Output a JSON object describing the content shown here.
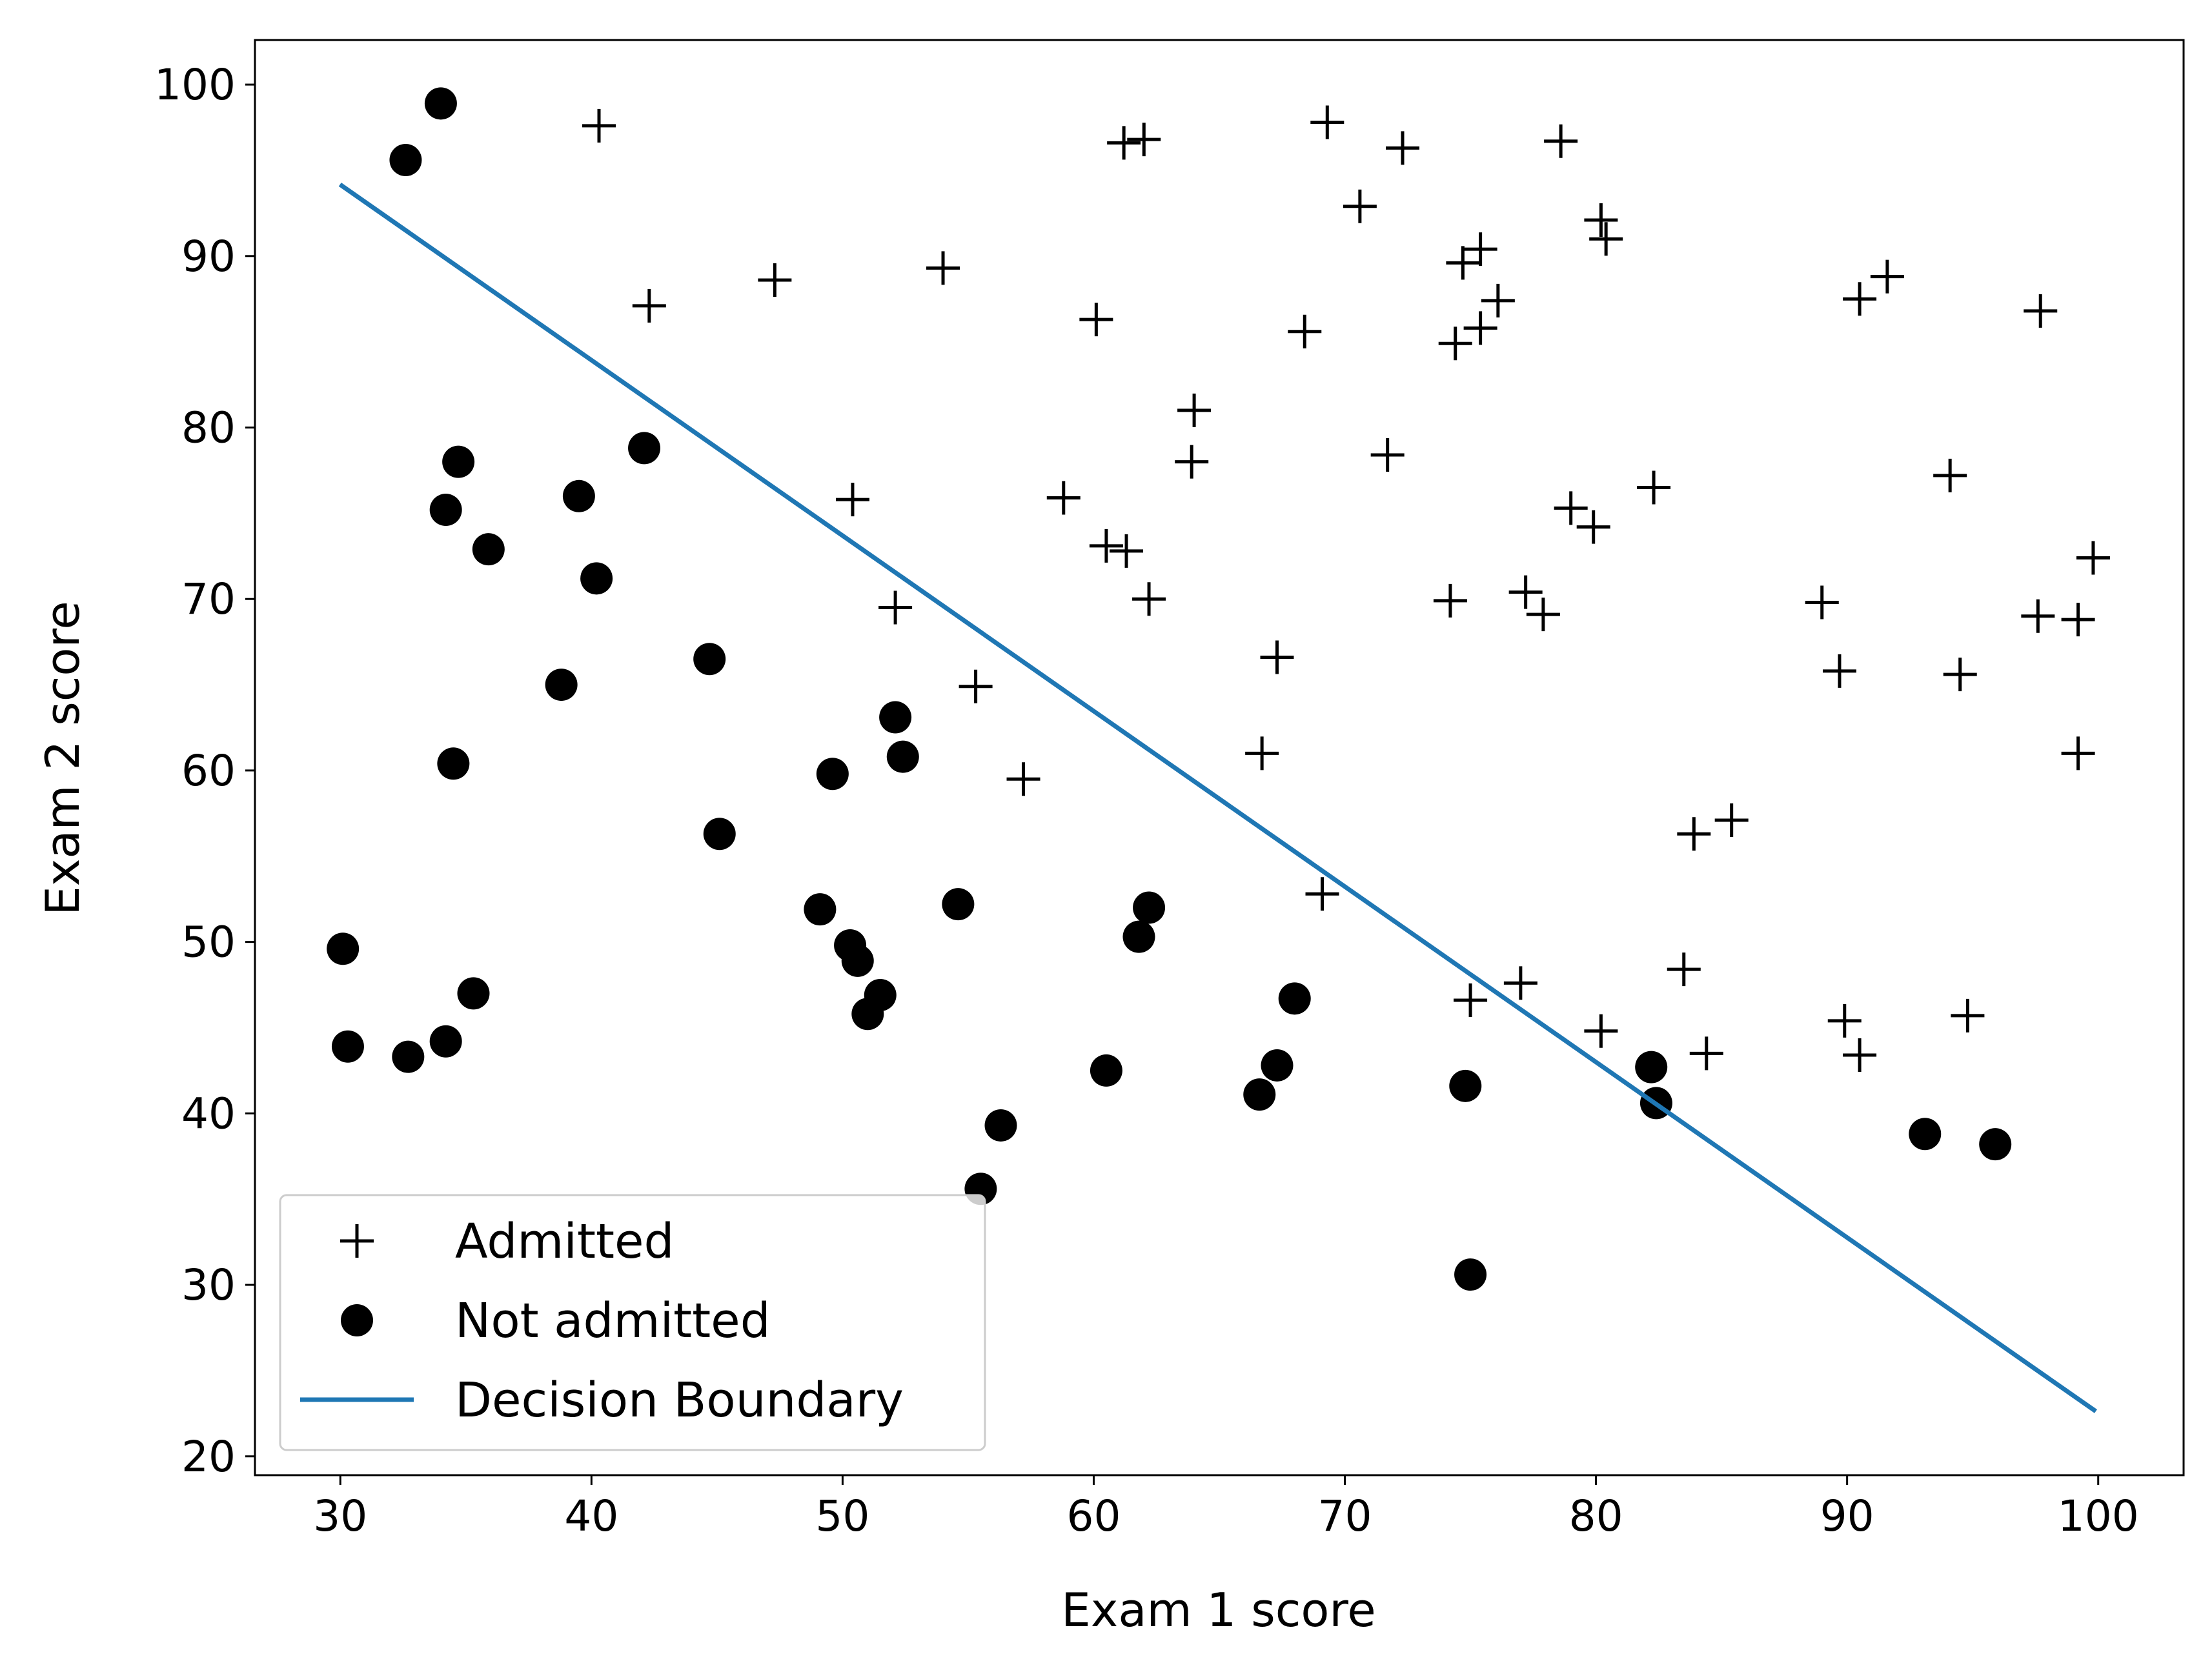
{
  "chart_data": {
    "type": "scatter",
    "xlabel": "Exam 1 score",
    "ylabel": "Exam 2 score",
    "xlim": [
      26.6,
      103.4
    ],
    "ylim": [
      18.9,
      102.6
    ],
    "xticks": [
      30,
      40,
      50,
      60,
      70,
      80,
      90,
      100
    ],
    "yticks": [
      20,
      30,
      40,
      50,
      60,
      70,
      80,
      90,
      100
    ],
    "grid": false,
    "legend_position": "lower-left",
    "series": [
      {
        "name": "Admitted",
        "marker": "plus",
        "color": "#000000",
        "points": [
          [
            40.3,
            97.6
          ],
          [
            61.2,
            96.6
          ],
          [
            62.0,
            96.8
          ],
          [
            69.3,
            97.8
          ],
          [
            72.3,
            96.3
          ],
          [
            78.6,
            96.7
          ],
          [
            70.6,
            92.9
          ],
          [
            80.2,
            92.1
          ],
          [
            80.4,
            91.0
          ],
          [
            54.0,
            89.3
          ],
          [
            47.3,
            88.6
          ],
          [
            42.3,
            87.1
          ],
          [
            74.7,
            89.6
          ],
          [
            75.4,
            90.4
          ],
          [
            75.4,
            85.8
          ],
          [
            76.1,
            87.4
          ],
          [
            74.4,
            84.9
          ],
          [
            68.4,
            85.6
          ],
          [
            60.1,
            86.3
          ],
          [
            90.5,
            87.5
          ],
          [
            91.6,
            88.8
          ],
          [
            97.7,
            86.8
          ],
          [
            64.0,
            81.0
          ],
          [
            63.9,
            78.0
          ],
          [
            71.7,
            78.4
          ],
          [
            94.1,
            77.2
          ],
          [
            82.3,
            76.5
          ],
          [
            50.4,
            75.8
          ],
          [
            58.8,
            75.9
          ],
          [
            60.5,
            73.1
          ],
          [
            61.3,
            72.8
          ],
          [
            79.0,
            75.3
          ],
          [
            79.9,
            74.2
          ],
          [
            99.8,
            72.4
          ],
          [
            52.1,
            69.5
          ],
          [
            62.2,
            70.0
          ],
          [
            74.2,
            69.9
          ],
          [
            77.2,
            70.4
          ],
          [
            77.9,
            69.1
          ],
          [
            89.0,
            69.8
          ],
          [
            97.6,
            69.0
          ],
          [
            99.2,
            68.8
          ],
          [
            67.3,
            66.6
          ],
          [
            89.7,
            65.8
          ],
          [
            94.5,
            65.6
          ],
          [
            55.3,
            64.9
          ],
          [
            66.7,
            61.0
          ],
          [
            99.2,
            61.0
          ],
          [
            57.2,
            59.5
          ],
          [
            83.9,
            56.3
          ],
          [
            85.4,
            57.1
          ],
          [
            69.1,
            52.8
          ],
          [
            83.5,
            48.4
          ],
          [
            75.0,
            46.6
          ],
          [
            77.0,
            47.6
          ],
          [
            80.2,
            44.8
          ],
          [
            89.9,
            45.4
          ],
          [
            94.8,
            45.7
          ],
          [
            84.4,
            43.5
          ],
          [
            90.5,
            43.4
          ]
        ]
      },
      {
        "name": "Not admitted",
        "marker": "circle",
        "color": "#000000",
        "points": [
          [
            34.0,
            98.9
          ],
          [
            32.6,
            95.6
          ],
          [
            42.1,
            78.8
          ],
          [
            34.7,
            78.0
          ],
          [
            34.2,
            75.2
          ],
          [
            39.5,
            76.0
          ],
          [
            35.9,
            72.9
          ],
          [
            40.2,
            71.2
          ],
          [
            44.7,
            66.5
          ],
          [
            38.8,
            65.0
          ],
          [
            52.1,
            63.1
          ],
          [
            52.4,
            60.8
          ],
          [
            49.6,
            59.8
          ],
          [
            34.5,
            60.4
          ],
          [
            45.1,
            56.3
          ],
          [
            54.6,
            52.2
          ],
          [
            62.2,
            52.0
          ],
          [
            49.1,
            51.9
          ],
          [
            61.8,
            50.3
          ],
          [
            50.3,
            49.8
          ],
          [
            30.1,
            49.6
          ],
          [
            50.6,
            48.9
          ],
          [
            35.3,
            47.0
          ],
          [
            51.5,
            46.9
          ],
          [
            68.0,
            46.7
          ],
          [
            51.0,
            45.8
          ],
          [
            30.3,
            43.9
          ],
          [
            32.7,
            43.3
          ],
          [
            34.2,
            44.2
          ],
          [
            60.5,
            42.5
          ],
          [
            67.3,
            42.8
          ],
          [
            66.6,
            41.1
          ],
          [
            74.8,
            41.6
          ],
          [
            82.2,
            42.7
          ],
          [
            82.4,
            40.6
          ],
          [
            56.3,
            39.3
          ],
          [
            93.1,
            38.8
          ],
          [
            95.9,
            38.2
          ],
          [
            55.5,
            35.6
          ],
          [
            75.0,
            30.6
          ]
        ]
      },
      {
        "name": "Decision Boundary",
        "marker": "line",
        "color": "#1f77b4",
        "x": [
          30.06,
          99.83
        ],
        "y": [
          94.1,
          22.7
        ]
      }
    ]
  }
}
